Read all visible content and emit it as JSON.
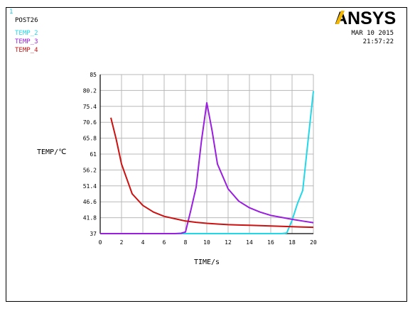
{
  "window": {
    "number": "1",
    "program": "POST26",
    "date": "MAR 10 2015",
    "time": "21:57:22",
    "logo": "ANSYS"
  },
  "colors": {
    "TEMP_2": "#22d8e8",
    "TEMP_3": "#9a1ee0",
    "TEMP_4": "#cc1111",
    "grid": "#b8b8b8",
    "window_number": "#22c8e0"
  },
  "chart_data": {
    "type": "line",
    "xlabel": "TIME/s",
    "ylabel": "TEMP/℃",
    "xlim": [
      0,
      20
    ],
    "ylim": [
      37,
      85
    ],
    "x_ticks": [
      "0",
      "2",
      "4",
      "6",
      "8",
      "10",
      "12",
      "14",
      "16",
      "18",
      "20"
    ],
    "y_ticks": [
      "37",
      "41.8",
      "46.6",
      "51.4",
      "56.2",
      "61",
      "65.8",
      "70.6",
      "75.4",
      "80.2",
      "85"
    ],
    "grid": true,
    "legend_position": "top-left",
    "series": [
      {
        "name": "TEMP_2",
        "x": [
          0,
          2,
          4,
          6,
          8,
          10,
          12,
          14,
          16,
          17,
          17.5,
          18,
          18.5,
          19,
          19.5,
          20
        ],
        "y": [
          37,
          37,
          37,
          37,
          37,
          37,
          37,
          37,
          37,
          37,
          37.2,
          41,
          46,
          50,
          65,
          80
        ]
      },
      {
        "name": "TEMP_3",
        "x": [
          0,
          2,
          4,
          6,
          7,
          7.6,
          8,
          8.5,
          9,
          9.5,
          10,
          10.5,
          11,
          12,
          13,
          14,
          15,
          16,
          17,
          18,
          19,
          20
        ],
        "y": [
          37,
          37,
          37,
          37,
          37,
          37.1,
          37.5,
          44,
          51,
          65,
          76.5,
          68,
          58,
          50.5,
          46.8,
          44.8,
          43.5,
          42.5,
          41.9,
          41.3,
          40.8,
          40.3
        ]
      },
      {
        "name": "TEMP_4",
        "x": [
          1,
          1.5,
          2,
          3,
          4,
          5,
          6,
          7,
          8,
          9,
          10,
          11,
          12,
          13,
          14,
          15,
          16,
          17,
          18,
          19,
          20
        ],
        "y": [
          72,
          65.5,
          58,
          49,
          45.5,
          43.5,
          42.2,
          41.5,
          40.8,
          40.4,
          40.1,
          39.9,
          39.7,
          39.6,
          39.5,
          39.4,
          39.3,
          39.2,
          39.1,
          39.0,
          38.9
        ]
      }
    ]
  }
}
